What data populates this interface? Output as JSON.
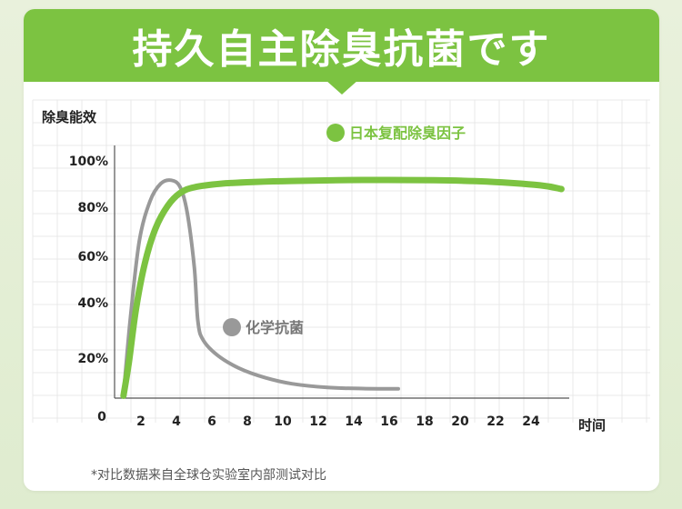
{
  "banner": {
    "title": "持久自主除臭抗菌です"
  },
  "footnote": "*对比数据来自全球仓实验室内部测试对比",
  "colors": {
    "green": "#7cc341",
    "gray": "#999999",
    "grid": "#e8e8e8",
    "axis": "#555555"
  },
  "chart_data": {
    "type": "line",
    "ylabel": "除臭能效",
    "xlabel": "时间",
    "x_origin_label": "0",
    "xticks": [
      "2",
      "4",
      "6",
      "8",
      "10",
      "12",
      "14",
      "16",
      "18",
      "20",
      "22",
      "24"
    ],
    "yticks": [
      "20%",
      "40%",
      "60%",
      "80%",
      "100%"
    ],
    "series": [
      {
        "name": "日本复配除臭因子",
        "color": "#7cc341",
        "points": [
          [
            0.5,
            1
          ],
          [
            0.8,
            15
          ],
          [
            1.2,
            38
          ],
          [
            1.7,
            58
          ],
          [
            2.3,
            73
          ],
          [
            3,
            83
          ],
          [
            3.7,
            88.5
          ],
          [
            4.5,
            91
          ],
          [
            6,
            92.5
          ],
          [
            8,
            93.3
          ],
          [
            10,
            93.7
          ],
          [
            14,
            94.1
          ],
          [
            18,
            94
          ],
          [
            21,
            93.4
          ],
          [
            24,
            91.8
          ],
          [
            25.2,
            90.2
          ]
        ]
      },
      {
        "name": "化学抗菌",
        "color": "#999999",
        "points": [
          [
            0.5,
            1
          ],
          [
            0.9,
            35
          ],
          [
            1.4,
            68
          ],
          [
            2,
            85
          ],
          [
            2.6,
            92.5
          ],
          [
            3.2,
            94
          ],
          [
            3.7,
            91
          ],
          [
            4.1,
            80
          ],
          [
            4.5,
            56
          ],
          [
            4.7,
            33
          ],
          [
            5,
            25
          ],
          [
            5.8,
            18.5
          ],
          [
            7,
            13
          ],
          [
            8.5,
            8.8
          ],
          [
            10,
            6.2
          ],
          [
            12,
            4.6
          ],
          [
            14,
            4.1
          ],
          [
            16,
            4
          ]
        ]
      }
    ]
  }
}
